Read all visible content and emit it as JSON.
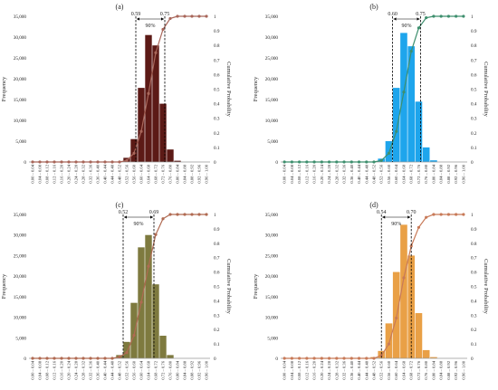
{
  "chart_data": [
    {
      "type": "bar",
      "panel_label": "(a)",
      "categories": [
        "0.00 – 0.04",
        "0.04 – 0.08",
        "0.08 – 0.12",
        "0.12 – 0.16",
        "0.16 – 0.20",
        "0.20 – 0.24",
        "0.24 – 0.28",
        "0.28 – 0.32",
        "0.32 – 0.36",
        "0.36 – 0.40",
        "0.40 – 0.44",
        "0.44 – 0.48",
        "0.48 – 0.52",
        "0.52 – 0.56",
        "0.56 – 0.60",
        "0.60 – 0.64",
        "0.64 – 0.68",
        "0.68 – 0.72",
        "0.72 – 0.76",
        "0.76 – 0.80",
        "0.80 – 0.84",
        "0.84 – 0.88",
        "0.88 – 0.92",
        "0.92 – 0.96",
        "0.96 – 1.00"
      ],
      "values": [
        0,
        0,
        0,
        0,
        0,
        0,
        0,
        0,
        0,
        0,
        0,
        0,
        0,
        1000,
        5500,
        17800,
        30500,
        28000,
        14000,
        3000,
        300,
        0,
        0,
        0,
        0
      ],
      "cumulative": [
        0,
        0,
        0,
        0,
        0,
        0,
        0,
        0,
        0,
        0,
        0,
        0,
        0,
        0.01,
        0.06,
        0.21,
        0.47,
        0.75,
        0.91,
        0.985,
        1,
        1,
        1,
        1,
        1
      ],
      "ylabel": "Frequency",
      "y2label": "Cumulative Probability",
      "ylim": [
        0,
        35000
      ],
      "y2lim": [
        0,
        1
      ],
      "yticks": [
        "0",
        "5,000",
        "10,000",
        "15,000",
        "20,000",
        "25,000",
        "30,000",
        "35,000"
      ],
      "y2ticks": [
        "0",
        "0.1",
        "0.2",
        "0.3",
        "0.4",
        "0.5",
        "0.6",
        "0.7",
        "0.8",
        "0.9",
        "1"
      ],
      "interval_lower": {
        "x": 0.59,
        "label": "0.59"
      },
      "interval_upper": {
        "x": 0.75,
        "label": "0.75"
      },
      "interval_label": "90%",
      "bar_color": "#5c1a16",
      "line_color": "#a8665a",
      "grid": false
    },
    {
      "type": "bar",
      "panel_label": "(b)",
      "categories": [
        "0.00 – 0.04",
        "0.04 – 0.08",
        "0.08 – 0.12",
        "0.12 – 0.16",
        "0.16 – 0.20",
        "0.20 – 0.24",
        "0.24 – 0.28",
        "0.28 – 0.32",
        "0.32 – 0.36",
        "0.36 – 0.40",
        "0.40 – 0.44",
        "0.44 – 0.48",
        "0.48 – 0.52",
        "0.52 – 0.56",
        "0.56 – 0.60",
        "0.60 – 0.64",
        "0.64 – 0.68",
        "0.68 – 0.72",
        "0.72 – 0.76",
        "0.76 – 0.80",
        "0.80 – 0.84",
        "0.84 – 0.88",
        "0.88 – 0.92",
        "0.92 – 0.96",
        "0.96 – 1.00"
      ],
      "values": [
        0,
        0,
        0,
        0,
        0,
        0,
        0,
        0,
        0,
        0,
        0,
        0,
        0,
        800,
        5000,
        17800,
        31000,
        27800,
        14500,
        3500,
        400,
        0,
        0,
        0,
        0
      ],
      "cumulative": [
        0,
        0,
        0,
        0,
        0,
        0,
        0,
        0,
        0,
        0,
        0,
        0,
        0,
        0.01,
        0.06,
        0.21,
        0.48,
        0.76,
        0.92,
        0.99,
        1,
        1,
        1,
        1,
        1
      ],
      "ylabel": "Frequency",
      "y2label": "Cumulative Probability",
      "ylim": [
        0,
        35000
      ],
      "y2lim": [
        0,
        1
      ],
      "yticks": [
        "0",
        "5,000",
        "10,000",
        "15,000",
        "20,000",
        "25,000",
        "30,000",
        "35,000"
      ],
      "y2ticks": [
        "0",
        "0.1",
        "0.2",
        "0.3",
        "0.4",
        "0.5",
        "0.6",
        "0.7",
        "0.8",
        "0.9",
        "1"
      ],
      "interval_lower": {
        "x": 0.6,
        "label": "0.60"
      },
      "interval_upper": {
        "x": 0.75,
        "label": "0.75"
      },
      "interval_label": "90%",
      "bar_color": "#1ea5ec",
      "line_color": "#3e8f6e",
      "grid": false
    },
    {
      "type": "bar",
      "panel_label": "(c)",
      "categories": [
        "0.00 – 0.04",
        "0.04 – 0.08",
        "0.08 – 0.12",
        "0.12 – 0.16",
        "0.16 – 0.20",
        "0.20 – 0.24",
        "0.24 – 0.28",
        "0.28 – 0.32",
        "0.32 – 0.36",
        "0.36 – 0.40",
        "0.40 – 0.44",
        "0.44 – 0.48",
        "0.48 – 0.52",
        "0.52 – 0.56",
        "0.56 – 0.60",
        "0.60 – 0.64",
        "0.64 – 0.68",
        "0.68 – 0.72",
        "0.72 – 0.76",
        "0.76 – 0.80",
        "0.80 – 0.84",
        "0.84 – 0.88",
        "0.88 – 0.92",
        "0.92 – 0.96",
        "0.96 – 1.00"
      ],
      "values": [
        0,
        0,
        0,
        0,
        0,
        0,
        0,
        0,
        0,
        0,
        0,
        0,
        800,
        4000,
        13500,
        27000,
        30000,
        18000,
        5500,
        800,
        0,
        0,
        0,
        0,
        0
      ],
      "cumulative": [
        0,
        0,
        0,
        0,
        0,
        0,
        0,
        0,
        0,
        0,
        0,
        0,
        0.01,
        0.04,
        0.16,
        0.39,
        0.64,
        0.86,
        0.97,
        1,
        1,
        1,
        1,
        1,
        1
      ],
      "ylabel": "Frequency",
      "y2label": "Cumulative Probability",
      "ylim": [
        0,
        35000
      ],
      "y2lim": [
        0,
        1
      ],
      "yticks": [
        "0",
        "5,000",
        "10,000",
        "15,000",
        "20,000",
        "25,000",
        "30,000",
        "35,000"
      ],
      "y2ticks": [
        "0",
        "0.1",
        "0.2",
        "0.3",
        "0.4",
        "0.5",
        "0.6",
        "0.7",
        "0.8",
        "0.9",
        "1"
      ],
      "interval_lower": {
        "x": 0.52,
        "label": "0.52"
      },
      "interval_upper": {
        "x": 0.69,
        "label": "0.69"
      },
      "interval_label": "90%",
      "bar_color": "#7e7a3f",
      "line_color": "#b06a52",
      "grid": false
    },
    {
      "type": "bar",
      "panel_label": "(d)",
      "categories": [
        "0.00 – 0.04",
        "0.04 – 0.08",
        "0.08 – 0.12",
        "0.12 – 0.16",
        "0.16 – 0.20",
        "0.20 – 0.24",
        "0.24 – 0.28",
        "0.28 – 0.32",
        "0.32 – 0.36",
        "0.36 – 0.40",
        "0.40 – 0.44",
        "0.44 – 0.48",
        "0.48 – 0.52",
        "0.52 – 0.56",
        "0.56 – 0.60",
        "0.60 – 0.64",
        "0.64 – 0.68",
        "0.68 – 0.72",
        "0.72 – 0.76",
        "0.76 – 0.80",
        "0.80 – 0.84",
        "0.84 – 0.88",
        "0.88 – 0.92",
        "0.92 – 0.96",
        "0.96 – 1.00"
      ],
      "values": [
        0,
        0,
        0,
        0,
        0,
        0,
        0,
        0,
        0,
        0,
        0,
        0,
        300,
        1800,
        8500,
        21000,
        32500,
        25000,
        11000,
        2000,
        300,
        0,
        0,
        0,
        0
      ],
      "cumulative": [
        0,
        0,
        0,
        0,
        0,
        0,
        0,
        0,
        0,
        0,
        0,
        0,
        0,
        0.02,
        0.1,
        0.28,
        0.56,
        0.78,
        0.91,
        0.98,
        1,
        1,
        1,
        1,
        1
      ],
      "ylabel": "Frequency",
      "y2label": "Cumulative Probability",
      "ylim": [
        0,
        35000
      ],
      "y2lim": [
        0,
        1
      ],
      "yticks": [
        "0",
        "5,000",
        "10,000",
        "15,000",
        "20,000",
        "25,000",
        "30,000",
        "35,000"
      ],
      "y2ticks": [
        "0",
        "0.1",
        "0.2",
        "0.3",
        "0.4",
        "0.5",
        "0.6",
        "0.7",
        "0.8",
        "0.9",
        "1"
      ],
      "interval_lower": {
        "x": 0.54,
        "label": "0.54"
      },
      "interval_upper": {
        "x": 0.7,
        "label": "0.70"
      },
      "interval_label": "90%",
      "bar_color": "#e9a046",
      "line_color": "#c87a58",
      "grid": false
    }
  ]
}
